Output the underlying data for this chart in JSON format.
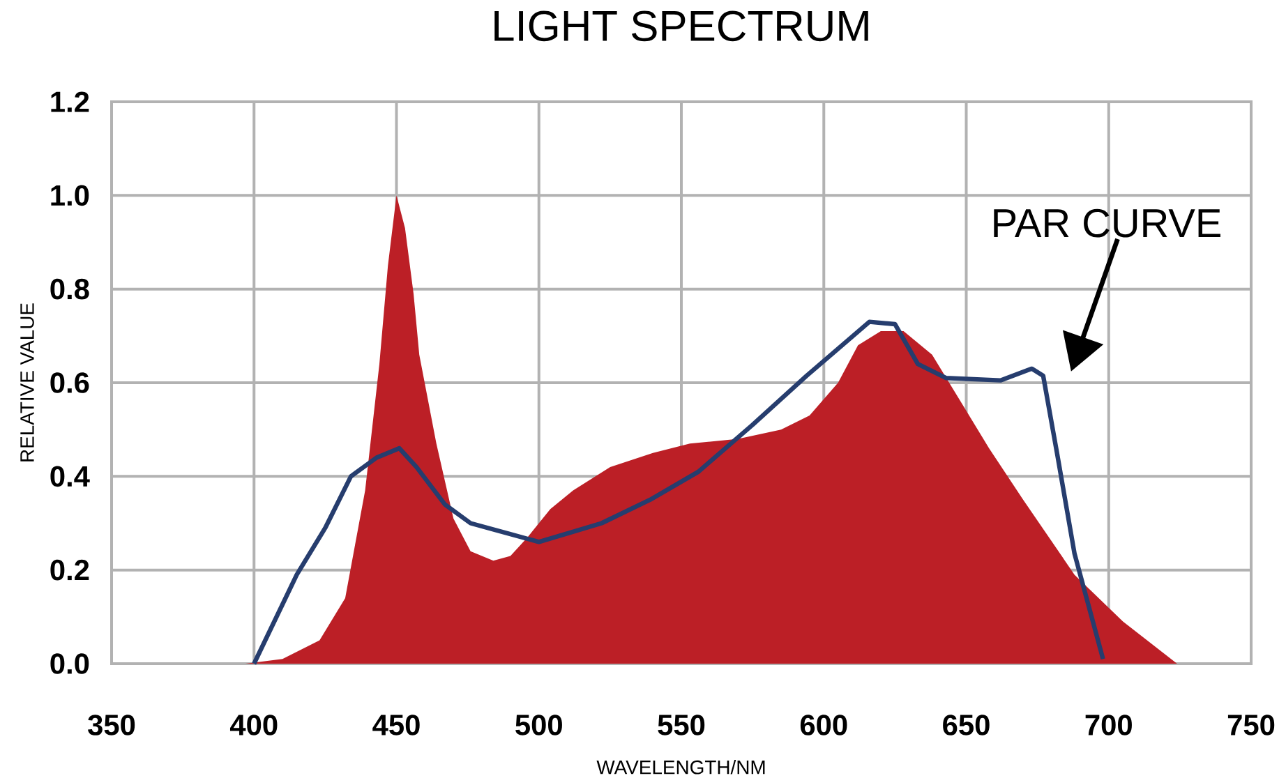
{
  "chart_data": {
    "type": "area",
    "title": "LIGHT SPECTRUM",
    "xlabel": "WAVELENGTH/NM",
    "ylabel": "RELATIVE VALUE",
    "xlim": [
      350,
      750
    ],
    "xticks": [
      350,
      400,
      450,
      500,
      550,
      600,
      650,
      700,
      750
    ],
    "ylim": [
      0,
      1.2
    ],
    "yticks": [
      {
        "value": 0,
        "label": "0.0"
      },
      0.2,
      0.4,
      0.6,
      0.8,
      {
        "value": 1,
        "label": "1.0"
      },
      1.2
    ],
    "grid": true,
    "line_style": "solid",
    "series": [
      {
        "x": [
          397,
          410,
          423,
          432,
          439,
          444,
          447,
          450,
          453,
          456,
          458,
          464,
          470,
          476,
          484,
          490,
          496,
          504,
          512,
          525,
          540,
          553,
          570,
          585,
          595,
          605,
          612,
          620,
          628,
          638,
          648,
          658,
          670,
          688,
          705,
          724
        ],
        "values": [
          0,
          0.01,
          0.05,
          0.14,
          0.37,
          0.64,
          0.85,
          1.0,
          0.93,
          0.79,
          0.66,
          0.47,
          0.31,
          0.24,
          0.22,
          0.23,
          0.27,
          0.33,
          0.37,
          0.42,
          0.45,
          0.47,
          0.48,
          0.5,
          0.53,
          0.6,
          0.68,
          0.71,
          0.71,
          0.66,
          0.56,
          0.46,
          0.35,
          0.19,
          0.09,
          0
        ],
        "color": "#bc1f26"
      },
      {
        "type": "line",
        "color": "#263d6e",
        "x": [
          400,
          415,
          425,
          434,
          443,
          451,
          457,
          467,
          476,
          500,
          522,
          539,
          556,
          575,
          594,
          616,
          625,
          633,
          643,
          662,
          673,
          677,
          682,
          688,
          698
        ],
        "values": [
          0,
          0.19,
          0.29,
          0.4,
          0.44,
          0.46,
          0.42,
          0.34,
          0.3,
          0.26,
          0.3,
          0.35,
          0.41,
          0.51,
          0.615,
          0.73,
          0.725,
          0.64,
          0.61,
          0.605,
          0.63,
          0.615,
          0.445,
          0.235,
          0.01
        ]
      }
    ],
    "annotations": [
      "PAR CURVE"
    ]
  }
}
